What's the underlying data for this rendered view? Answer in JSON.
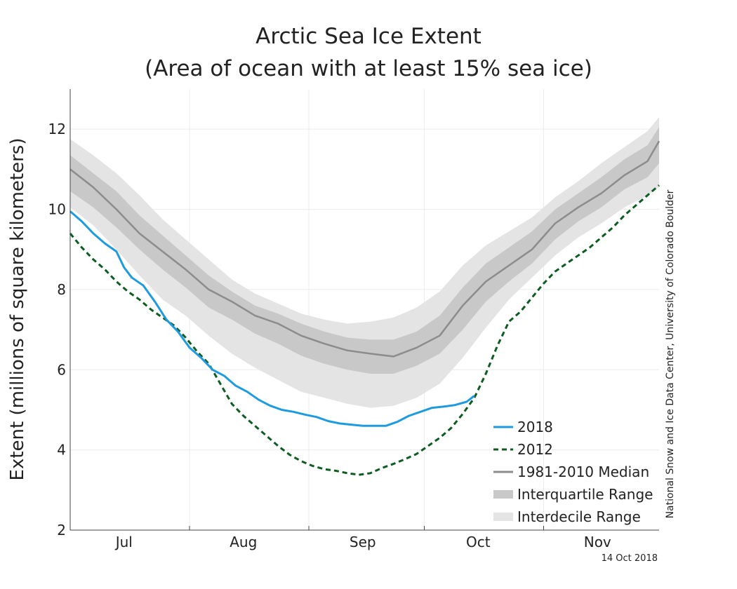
{
  "chart_data": {
    "type": "line",
    "title": "Arctic Sea Ice Extent",
    "subtitle": "(Area of ocean with at least 15% sea ice)",
    "ylabel": "Extent (millions of square kilometers)",
    "xlabel": "",
    "ylim": [
      2,
      13
    ],
    "yticks": [
      2,
      4,
      6,
      8,
      10,
      12
    ],
    "xlim": [
      1,
      154
    ],
    "month_labels": [
      {
        "label": "Jul",
        "day": 15
      },
      {
        "label": "Aug",
        "day": 46
      },
      {
        "label": "Sep",
        "day": 77
      },
      {
        "label": "Oct",
        "day": 107
      },
      {
        "label": "Nov",
        "day": 138
      }
    ],
    "month_boundaries": [
      1,
      32,
      63,
      93,
      124,
      154
    ],
    "grid": true,
    "legend_position": "bottom-right",
    "credit": "National Snow and Ice Data Center, University of Colorado Boulder",
    "date_stamp": "14 Oct 2018",
    "colors": {
      "y2018": "#1e9be0",
      "y2012": "#0d5c22",
      "median": "#8c8c8c",
      "interquartile": "#c8c8c8",
      "interdecile": "#e4e4e4"
    },
    "series": [
      {
        "name": "2018",
        "style": "solid",
        "x": [
          1,
          4,
          7,
          10,
          13,
          15,
          17,
          20,
          23,
          26,
          29,
          32,
          35,
          38,
          41,
          44,
          47,
          50,
          53,
          56,
          59,
          62,
          65,
          68,
          71,
          74,
          77,
          80,
          83,
          86,
          89,
          92,
          95,
          98,
          101,
          104,
          106
        ],
        "y": [
          9.95,
          9.7,
          9.4,
          9.15,
          8.95,
          8.55,
          8.3,
          8.1,
          7.7,
          7.25,
          6.95,
          6.55,
          6.3,
          6.0,
          5.85,
          5.6,
          5.45,
          5.25,
          5.1,
          5.0,
          4.95,
          4.88,
          4.82,
          4.72,
          4.66,
          4.63,
          4.6,
          4.6,
          4.6,
          4.7,
          4.85,
          4.95,
          5.05,
          5.08,
          5.12,
          5.2,
          5.35
        ]
      },
      {
        "name": "2012",
        "style": "dashed",
        "x": [
          1,
          4,
          7,
          10,
          13,
          16,
          19,
          22,
          25,
          28,
          31,
          34,
          37,
          40,
          43,
          46,
          49,
          52,
          55,
          58,
          61,
          64,
          67,
          70,
          73,
          76,
          79,
          82,
          85,
          88,
          91,
          94,
          97,
          100,
          103,
          106,
          109,
          112,
          115,
          118,
          121,
          124,
          127,
          130,
          133,
          136,
          139,
          142,
          145,
          148,
          151,
          154
        ],
        "y": [
          9.4,
          9.05,
          8.75,
          8.5,
          8.2,
          7.95,
          7.75,
          7.5,
          7.3,
          7.1,
          6.8,
          6.45,
          6.15,
          5.65,
          5.15,
          4.85,
          4.6,
          4.35,
          4.1,
          3.88,
          3.72,
          3.6,
          3.52,
          3.48,
          3.42,
          3.38,
          3.42,
          3.55,
          3.65,
          3.77,
          3.9,
          4.1,
          4.3,
          4.55,
          4.9,
          5.3,
          5.9,
          6.6,
          7.2,
          7.45,
          7.8,
          8.15,
          8.45,
          8.65,
          8.85,
          9.05,
          9.3,
          9.55,
          9.85,
          10.1,
          10.35,
          10.6
        ]
      },
      {
        "name": "1981-2010 Median",
        "style": "solid",
        "x": [
          1,
          7,
          13,
          19,
          25,
          31,
          37,
          43,
          49,
          55,
          61,
          67,
          73,
          79,
          85,
          91,
          97,
          103,
          109,
          115,
          121,
          127,
          133,
          139,
          145,
          151,
          154
        ],
        "y": [
          11.0,
          10.55,
          10.0,
          9.4,
          8.95,
          8.5,
          8.0,
          7.7,
          7.35,
          7.15,
          6.85,
          6.65,
          6.48,
          6.4,
          6.33,
          6.55,
          6.85,
          7.6,
          8.2,
          8.6,
          9.0,
          9.65,
          10.05,
          10.4,
          10.85,
          11.2,
          11.7
        ]
      }
    ],
    "ranges": [
      {
        "name": "Interquartile Range",
        "x": [
          1,
          7,
          13,
          19,
          25,
          31,
          37,
          43,
          49,
          55,
          61,
          67,
          73,
          79,
          85,
          91,
          97,
          103,
          109,
          115,
          121,
          127,
          133,
          139,
          145,
          151,
          154
        ],
        "upper": [
          11.35,
          10.9,
          10.45,
          9.85,
          9.35,
          8.85,
          8.35,
          7.95,
          7.6,
          7.4,
          7.15,
          6.95,
          6.8,
          6.75,
          6.75,
          6.95,
          7.35,
          8.05,
          8.65,
          9.05,
          9.45,
          10.0,
          10.4,
          10.8,
          11.25,
          11.6,
          12.05
        ],
        "lower": [
          10.45,
          10.05,
          9.55,
          9.0,
          8.5,
          8.05,
          7.55,
          7.25,
          6.9,
          6.65,
          6.35,
          6.15,
          6.0,
          5.9,
          5.9,
          6.1,
          6.4,
          7.0,
          7.7,
          8.2,
          8.65,
          9.25,
          9.7,
          10.05,
          10.5,
          10.8,
          11.15
        ]
      },
      {
        "name": "Interdecile Range",
        "x": [
          1,
          7,
          13,
          19,
          25,
          31,
          37,
          43,
          49,
          55,
          61,
          67,
          73,
          79,
          85,
          91,
          97,
          103,
          109,
          115,
          121,
          127,
          133,
          139,
          145,
          151,
          154
        ],
        "upper": [
          11.75,
          11.35,
          10.9,
          10.35,
          9.75,
          9.25,
          8.75,
          8.25,
          7.9,
          7.65,
          7.4,
          7.25,
          7.15,
          7.2,
          7.3,
          7.55,
          7.95,
          8.6,
          9.1,
          9.45,
          9.8,
          10.3,
          10.7,
          11.15,
          11.55,
          11.95,
          12.3
        ],
        "lower": [
          10.05,
          9.6,
          9.0,
          8.35,
          7.75,
          7.35,
          6.85,
          6.4,
          6.05,
          5.75,
          5.45,
          5.3,
          5.15,
          5.05,
          5.1,
          5.3,
          5.65,
          6.3,
          7.05,
          7.75,
          8.3,
          8.85,
          9.3,
          9.65,
          10.05,
          10.35,
          10.55
        ]
      }
    ],
    "legend": [
      {
        "label": "2018",
        "key": "y2018",
        "kind": "line"
      },
      {
        "label": "2012",
        "key": "y2012",
        "kind": "dashed"
      },
      {
        "label": "1981-2010 Median",
        "key": "median",
        "kind": "line"
      },
      {
        "label": "Interquartile Range",
        "key": "interquartile",
        "kind": "band"
      },
      {
        "label": "Interdecile Range",
        "key": "interdecile",
        "kind": "band"
      }
    ]
  }
}
